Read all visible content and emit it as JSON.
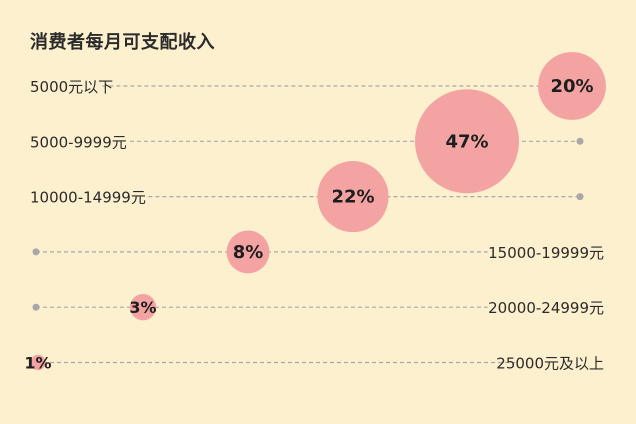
{
  "chart_data": {
    "type": "scatter",
    "title": "消费者每月可支配收入",
    "categories": [
      "5000元以下",
      "5000-9999元",
      "10000-14999元",
      "15000-19999元",
      "20000-24999元",
      "25000元及以上"
    ],
    "values": [
      20,
      47,
      22,
      8,
      3,
      1
    ],
    "value_labels": [
      "20%",
      "47%",
      "22%",
      "8%",
      "3%",
      "1%"
    ],
    "label_side": [
      "left",
      "left",
      "left",
      "right",
      "right",
      "right"
    ],
    "unit": "%",
    "bubble_color": "#f4a3a3",
    "line_color": "#a8a8a8",
    "text_color": "#2b2b2b",
    "background_color": "#fdf0cf"
  }
}
